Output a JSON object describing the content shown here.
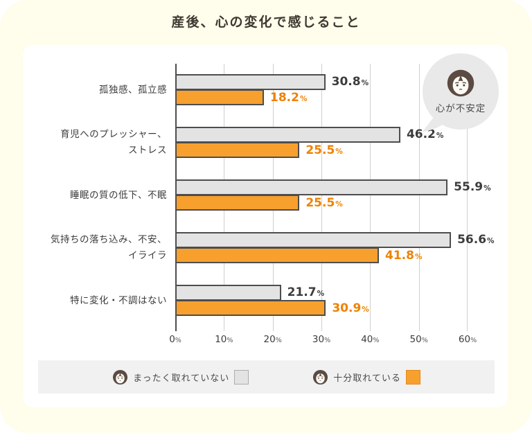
{
  "page": {
    "title": "産後、心の変化で感じること",
    "background_color": "#FFFDEB",
    "card_color": "#FFFFFF"
  },
  "bubble": {
    "label": "心が不安定"
  },
  "axis": {
    "ticks": [
      "0",
      "10",
      "20",
      "30",
      "40",
      "50",
      "60"
    ],
    "percent_sign": "%"
  },
  "legend": {
    "items": [
      {
        "label": "まったく取れていない",
        "swatch_color": "#E3E3E3"
      },
      {
        "label": "十分取れている",
        "swatch_color": "#F7A02E"
      }
    ]
  },
  "rows": [
    {
      "label": "孤独感、孤立感"
    },
    {
      "label": "育児へのプレッシャー、\nストレス"
    },
    {
      "label": "睡眠の質の低下、不眠"
    },
    {
      "label": "気持ちの落ち込み、不安、\nイライラ"
    },
    {
      "label": "特に変化・不調はない"
    }
  ],
  "chart_data": {
    "type": "bar",
    "orientation": "horizontal",
    "title": "産後、心の変化で感じること",
    "categories": [
      "孤独感、孤立感",
      "育児へのプレッシャー、ストレス",
      "睡眠の質の低下、不眠",
      "気持ちの落ち込み、不安、イライラ",
      "特に変化・不調はない"
    ],
    "series": [
      {
        "name": "まったく取れていない",
        "color": "#E3E3E3",
        "values": [
          30.8,
          46.2,
          55.9,
          56.6,
          21.7
        ]
      },
      {
        "name": "十分取れている",
        "color": "#F7A02E",
        "values": [
          18.2,
          25.5,
          25.5,
          41.8,
          30.9
        ]
      }
    ],
    "xlim": [
      0,
      60
    ],
    "x_tick_step": 10,
    "x_unit": "%",
    "grid": true,
    "legend_position": "bottom",
    "annotation": "心が不安定"
  }
}
